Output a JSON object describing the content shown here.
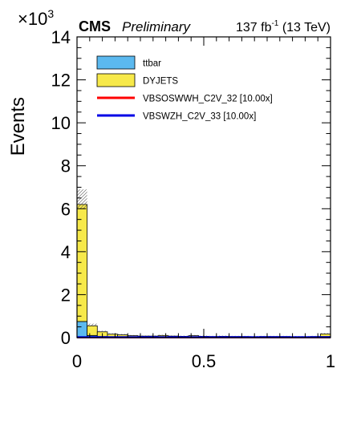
{
  "chart_data": {
    "type": "bar",
    "stacked": true,
    "ylabel": "Events",
    "y_multiplier_base": "×10",
    "y_multiplier_exp": "3",
    "experiment": "CMS",
    "status": "Preliminary",
    "lumi_value": "137 fb",
    "lumi_exp": "-1",
    "lumi_energy": " (13 TeV)",
    "xlim": [
      0,
      1
    ],
    "ylim": [
      0,
      14
    ],
    "x_ticks": [
      {
        "value": 0,
        "label": "0"
      },
      {
        "value": 0.5,
        "label": "0.5"
      },
      {
        "value": 1,
        "label": "1"
      }
    ],
    "y_ticks": [
      {
        "value": 0,
        "label": "0"
      },
      {
        "value": 2,
        "label": "2"
      },
      {
        "value": 4,
        "label": "4"
      },
      {
        "value": 6,
        "label": "6"
      },
      {
        "value": 8,
        "label": "8"
      },
      {
        "value": 10,
        "label": "10"
      },
      {
        "value": 12,
        "label": "12"
      },
      {
        "value": 14,
        "label": "14"
      }
    ],
    "bin_edges": [
      0.0,
      0.04,
      0.08,
      0.12,
      0.16,
      0.2,
      0.24,
      0.28,
      0.32,
      0.36,
      0.4,
      0.44,
      0.48,
      0.52,
      0.56,
      0.6,
      0.64,
      0.68,
      0.72,
      0.76,
      0.8,
      0.84,
      0.88,
      0.92,
      0.96,
      1.0
    ],
    "series": [
      {
        "name": "ttbar",
        "kind": "stack",
        "color": "#5bb9ef",
        "values": [
          0.75,
          0.1,
          0.05,
          0.03,
          0.03,
          0.02,
          0.02,
          0.02,
          0.02,
          0.02,
          0.02,
          0.02,
          0.02,
          0.02,
          0.02,
          0.02,
          0.02,
          0.02,
          0.02,
          0.02,
          0.02,
          0.02,
          0.02,
          0.02,
          0.05
        ]
      },
      {
        "name": "DYJETS",
        "kind": "stack",
        "color": "#f7e94a",
        "values": [
          5.45,
          0.45,
          0.22,
          0.13,
          0.1,
          0.07,
          0.05,
          0.05,
          0.08,
          0.05,
          0.04,
          0.07,
          0.04,
          0.03,
          0.04,
          0.03,
          0.03,
          0.02,
          0.03,
          0.03,
          0.03,
          0.02,
          0.02,
          0.03,
          0.12
        ]
      },
      {
        "name": "VBSOSWWH_C2V_32 [10.00x]",
        "kind": "line",
        "color": "#ff0000",
        "values": [
          0.01,
          0.01,
          0.01,
          0.01,
          0.01,
          0.01,
          0.01,
          0.01,
          0.01,
          0.01,
          0.01,
          0.01,
          0.01,
          0.01,
          0.01,
          0.01,
          0.01,
          0.01,
          0.01,
          0.01,
          0.01,
          0.01,
          0.01,
          0.01,
          0.01
        ]
      },
      {
        "name": "VBSWZH_C2V_33 [10.00x]",
        "kind": "line",
        "color": "#0000e6",
        "values": [
          0.02,
          0.02,
          0.02,
          0.02,
          0.02,
          0.02,
          0.02,
          0.02,
          0.02,
          0.02,
          0.02,
          0.02,
          0.02,
          0.02,
          0.02,
          0.02,
          0.02,
          0.02,
          0.02,
          0.02,
          0.02,
          0.02,
          0.02,
          0.02,
          0.02
        ]
      }
    ],
    "uncertainty": [
      0.7,
      0.1,
      0.05,
      0.04,
      0.04,
      0.03,
      0.03,
      0.03,
      0.03,
      0.03,
      0.03,
      0.03,
      0.03,
      0.03,
      0.03,
      0.03,
      0.03,
      0.03,
      0.03,
      0.03,
      0.03,
      0.03,
      0.03,
      0.03,
      0.04
    ],
    "legend_position": "top-left"
  }
}
